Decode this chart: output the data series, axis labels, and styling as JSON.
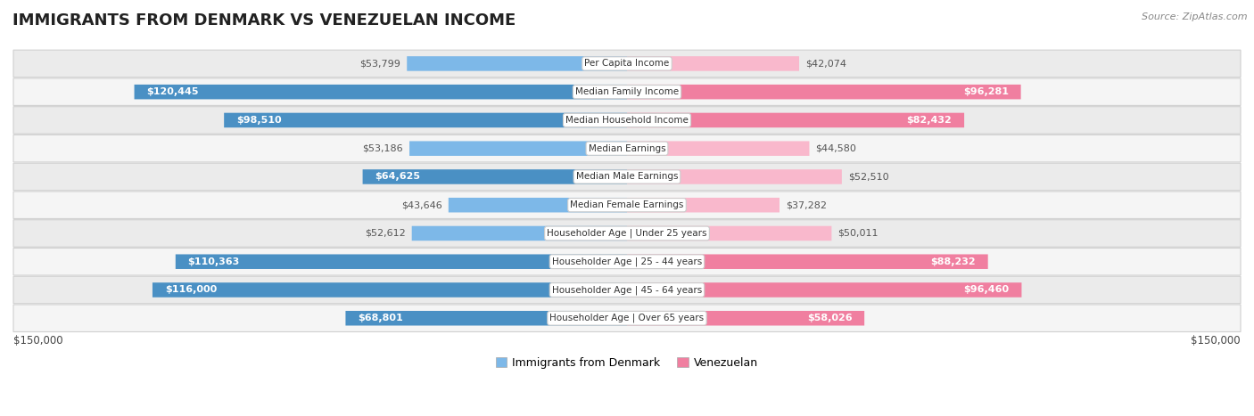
{
  "title": "IMMIGRANTS FROM DENMARK VS VENEZUELAN INCOME",
  "source": "Source: ZipAtlas.com",
  "categories": [
    "Per Capita Income",
    "Median Family Income",
    "Median Household Income",
    "Median Earnings",
    "Median Male Earnings",
    "Median Female Earnings",
    "Householder Age | Under 25 years",
    "Householder Age | 25 - 44 years",
    "Householder Age | 45 - 64 years",
    "Householder Age | Over 65 years"
  ],
  "denmark_values": [
    53799,
    120445,
    98510,
    53186,
    64625,
    43646,
    52612,
    110363,
    116000,
    68801
  ],
  "venezuelan_values": [
    42074,
    96281,
    82432,
    44580,
    52510,
    37282,
    50011,
    88232,
    96460,
    58026
  ],
  "denmark_labels": [
    "$53,799",
    "$120,445",
    "$98,510",
    "$53,186",
    "$64,625",
    "$43,646",
    "$52,612",
    "$110,363",
    "$116,000",
    "$68,801"
  ],
  "venezuelan_labels": [
    "$42,074",
    "$96,281",
    "$82,432",
    "$44,580",
    "$52,510",
    "$37,282",
    "$50,011",
    "$88,232",
    "$96,460",
    "$58,026"
  ],
  "denmark_color": "#7db8e8",
  "danish_color_dark": "#4a90c4",
  "venezuelan_color": "#f07fa0",
  "venezuelan_color_light": "#f9b8cc",
  "max_value": 150000,
  "row_bg_color": "#ebebeb",
  "row_bg_alt_color": "#f5f5f5",
  "background_color": "#ffffff",
  "legend_denmark": "Immigrants from Denmark",
  "legend_venezuelan": "Venezuelan",
  "xlabel_left": "$150,000",
  "xlabel_right": "$150,000",
  "inside_label_threshold": 55000,
  "title_fontsize": 13,
  "label_fontsize": 8,
  "cat_fontsize": 7.5
}
